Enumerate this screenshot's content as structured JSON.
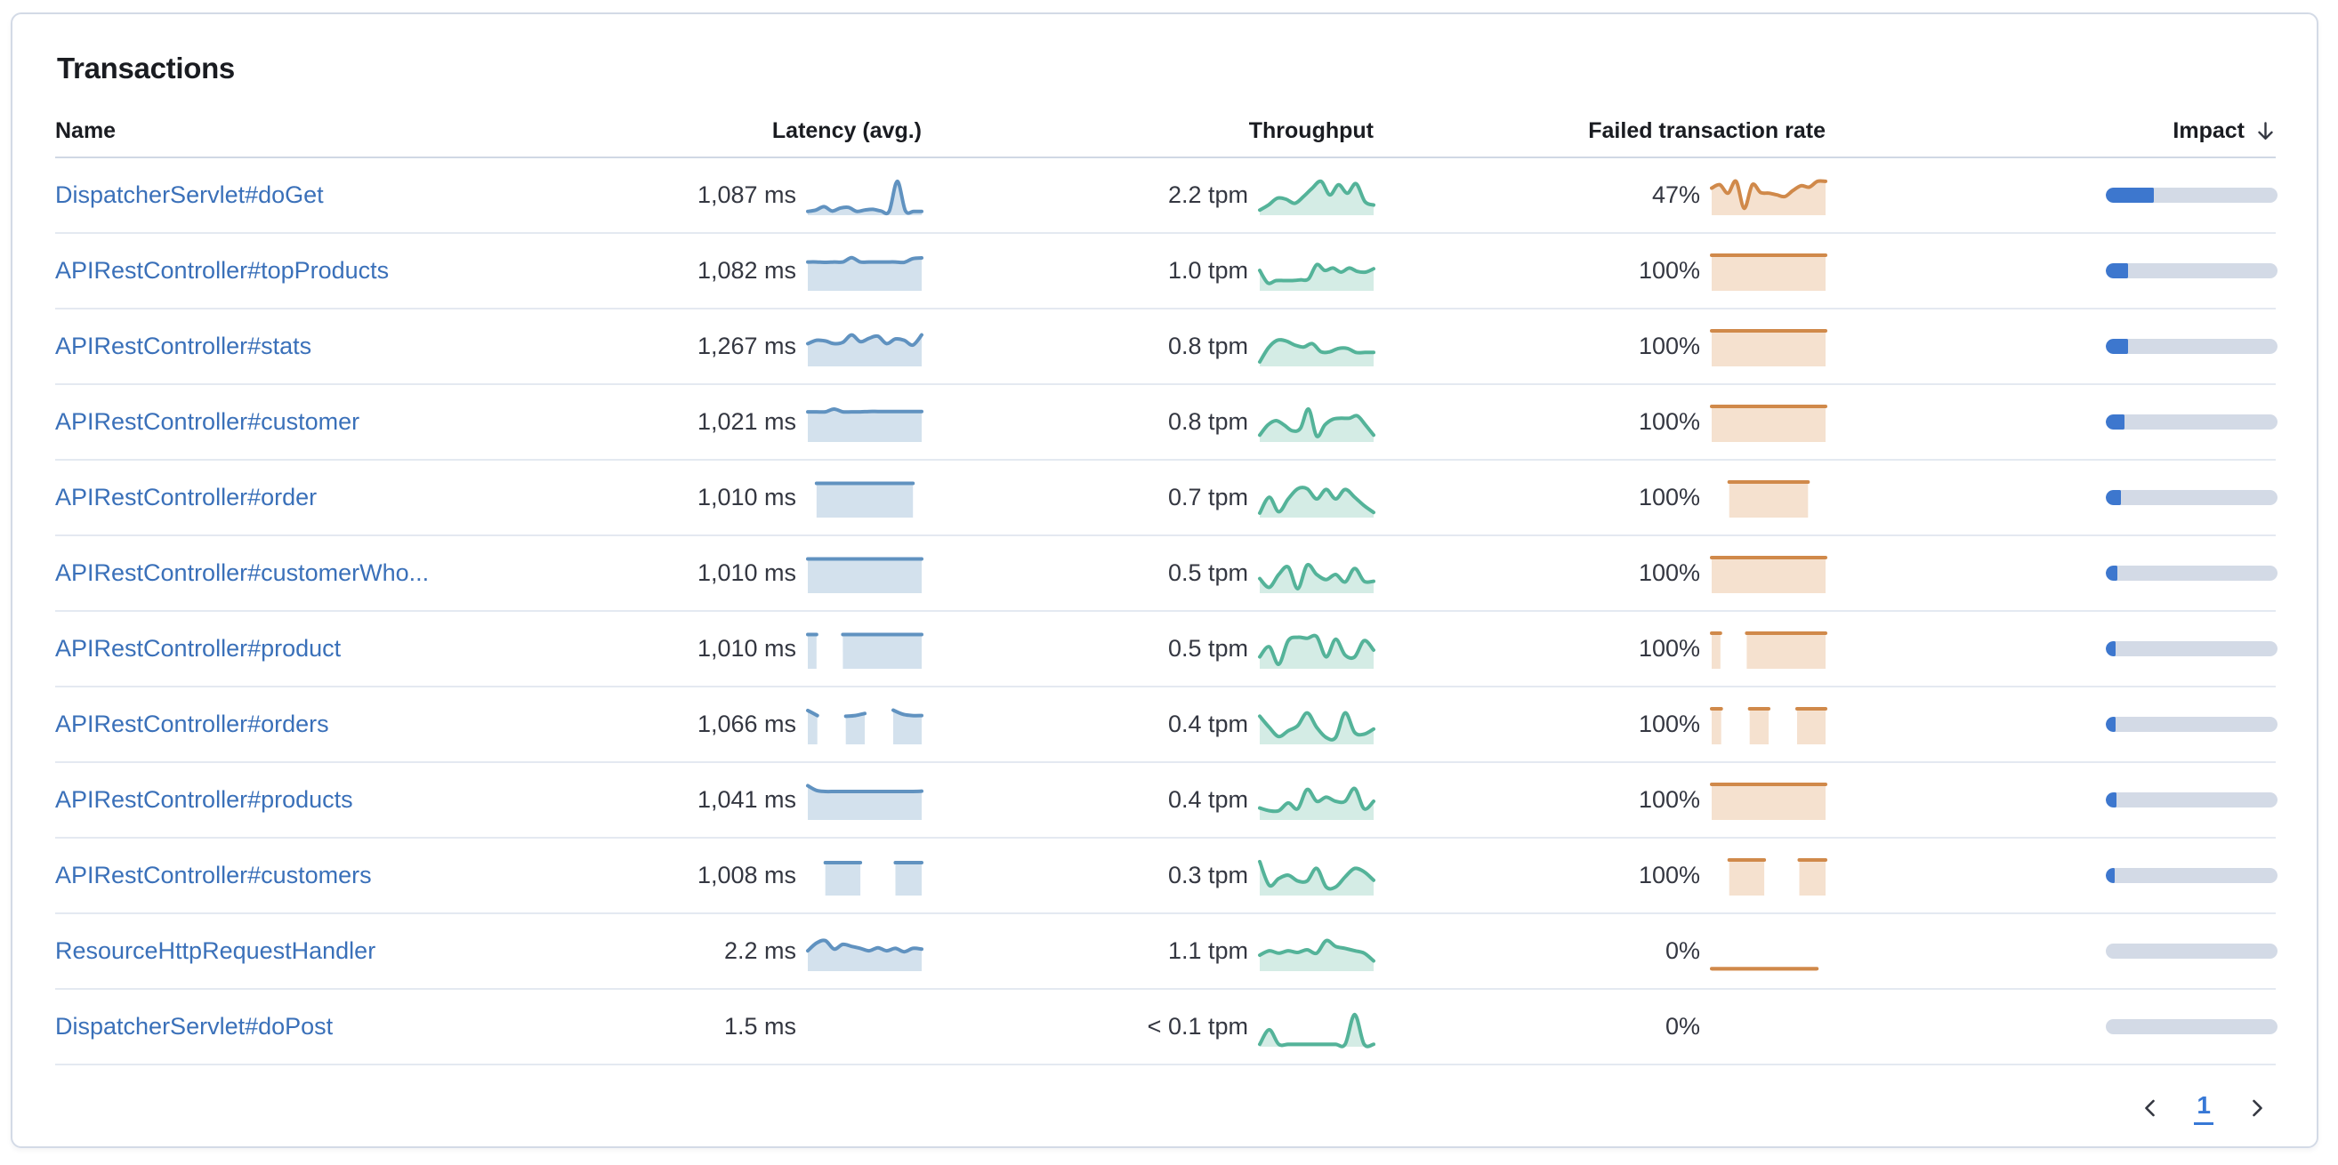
{
  "panel": {
    "title": "Transactions"
  },
  "colors": {
    "latency_line": "#6092c0",
    "latency_fill": "rgba(96,146,192,0.28)",
    "throughput_line": "#54b399",
    "throughput_fill": "rgba(84,179,153,0.25)",
    "failed_line": "#d0894a",
    "failed_fill": "rgba(218,139,69,0.26)",
    "impact_fill": "#3d77ce",
    "impact_track": "#d3dae6",
    "link": "#3a70b9",
    "value_text": "#343741",
    "header_text": "#1a1c21"
  },
  "table": {
    "columns": [
      {
        "label": "Name",
        "align": "left",
        "sortable": false
      },
      {
        "label": "Latency (avg.)",
        "align": "right",
        "sortable": true
      },
      {
        "label": "Throughput",
        "align": "right",
        "sortable": true
      },
      {
        "label": "Failed transaction rate",
        "align": "right",
        "sortable": true
      },
      {
        "label": "Impact",
        "align": "right",
        "sortable": true,
        "sort": "desc"
      }
    ],
    "rows": [
      {
        "name": "DispatcherServlet#doGet",
        "latency": "1,087 ms",
        "throughput": "2.2 tpm",
        "failed_rate": "47%",
        "impact_pct": 28,
        "latency_spark": [
          0.06,
          0.1,
          0.2,
          0.07,
          0.16,
          0.18,
          0.06,
          0.1,
          0.12,
          0.07,
          0.06,
          0.95,
          0.08,
          0.06,
          0.06
        ],
        "throughput_spark": [
          0.1,
          0.25,
          0.45,
          0.42,
          0.3,
          0.5,
          0.75,
          0.95,
          0.55,
          0.85,
          0.6,
          0.88,
          0.35,
          0.25
        ],
        "failed_rate_spark": [
          0.75,
          0.85,
          0.6,
          0.95,
          0.15,
          0.85,
          0.62,
          0.6,
          0.55,
          0.5,
          0.68,
          0.82,
          0.78,
          0.95,
          0.95
        ]
      },
      {
        "name": "APIRestController#topProducts",
        "latency": "1,082 ms",
        "throughput": "1.0 tpm",
        "failed_rate": "100%",
        "impact_pct": 13,
        "latency_spark": [
          0.8,
          0.8,
          0.79,
          0.8,
          0.8,
          0.93,
          0.8,
          0.8,
          0.8,
          0.8,
          0.8,
          0.79,
          0.9,
          0.92
        ],
        "throughput_spark": [
          0.55,
          0.18,
          0.25,
          0.25,
          0.25,
          0.27,
          0.3,
          0.72,
          0.55,
          0.62,
          0.5,
          0.62,
          0.52,
          0.5,
          0.6
        ],
        "failed_rate_spark": [
          1,
          1,
          1,
          1,
          1,
          1,
          1,
          1,
          1,
          1,
          1,
          1,
          1,
          1
        ]
      },
      {
        "name": "APIRestController#stats",
        "latency": "1,267 ms",
        "throughput": "0.8 tpm",
        "failed_rate": "100%",
        "impact_pct": 13,
        "latency_spark": [
          0.62,
          0.72,
          0.7,
          0.62,
          0.66,
          0.88,
          0.68,
          0.78,
          0.84,
          0.62,
          0.76,
          0.72,
          0.58,
          0.88
        ],
        "throughput_spark": [
          0.08,
          0.5,
          0.72,
          0.7,
          0.58,
          0.52,
          0.62,
          0.38,
          0.38,
          0.48,
          0.48,
          0.36,
          0.36,
          0.36
        ],
        "failed_rate_spark": [
          1,
          1,
          1,
          1,
          1,
          1,
          1,
          1,
          1,
          1,
          1,
          1,
          1,
          1
        ]
      },
      {
        "name": "APIRestController#customer",
        "latency": "1,021 ms",
        "throughput": "0.8 tpm",
        "failed_rate": "100%",
        "impact_pct": 11,
        "latency_spark": [
          0.84,
          0.84,
          0.84,
          0.92,
          0.84,
          0.84,
          0.84,
          0.85,
          0.85,
          0.85,
          0.85,
          0.85,
          0.85,
          0.85
        ],
        "throughput_spark": [
          0.15,
          0.45,
          0.58,
          0.45,
          0.28,
          0.35,
          0.92,
          0.12,
          0.45,
          0.62,
          0.65,
          0.65,
          0.72,
          0.45,
          0.15
        ],
        "failed_rate_spark": [
          1,
          1,
          1,
          1,
          1,
          1,
          1,
          1,
          1,
          1,
          1,
          1,
          1,
          1
        ]
      },
      {
        "name": "APIRestController#order",
        "latency": "1,010 ms",
        "throughput": "0.7 tpm",
        "failed_rate": "100%",
        "impact_pct": 9,
        "latency_spark": [
          null,
          0.96,
          0.96,
          0.96,
          0.96,
          0.96,
          0.96,
          0.96,
          0.96,
          0.96,
          0.96,
          0.96,
          0.96,
          null
        ],
        "throughput_spark": [
          0.08,
          0.55,
          0.12,
          0.5,
          0.8,
          0.8,
          0.5,
          0.78,
          0.5,
          0.78,
          0.55,
          0.3,
          0.1
        ],
        "failed_rate_spark": [
          null,
          null,
          1,
          1,
          1,
          1,
          1,
          1,
          1,
          1,
          1,
          1,
          null,
          null
        ]
      },
      {
        "name": "APIRestController#customerWho...",
        "latency": "1,010 ms",
        "throughput": "0.5 tpm",
        "failed_rate": "100%",
        "impact_pct": 6.5,
        "latency_spark": [
          0.96,
          0.96,
          0.96,
          0.96,
          0.96,
          0.96,
          0.96,
          0.96,
          0.96,
          0.96,
          0.96,
          0.96,
          0.96,
          0.96
        ],
        "throughput_spark": [
          0.38,
          0.12,
          0.5,
          0.72,
          0.08,
          0.78,
          0.5,
          0.35,
          0.5,
          0.28,
          0.68,
          0.3,
          0.3
        ],
        "failed_rate_spark": [
          1,
          1,
          1,
          1,
          1,
          1,
          1,
          1,
          1,
          1,
          1,
          1,
          1,
          1
        ]
      },
      {
        "name": "APIRestController#product",
        "latency": "1,010 ms",
        "throughput": "0.5 tpm",
        "failed_rate": "100%",
        "impact_pct": 5.5,
        "latency_spark": [
          0.96,
          0.96,
          null,
          null,
          0.96,
          0.96,
          0.96,
          0.96,
          0.96,
          0.96,
          0.96,
          0.96,
          0.96,
          0.96
        ],
        "throughput_spark": [
          0.3,
          0.6,
          0.08,
          0.78,
          0.88,
          0.85,
          0.9,
          0.3,
          0.82,
          0.35,
          0.3,
          0.78,
          0.5
        ],
        "failed_rate_spark": [
          1,
          1,
          null,
          null,
          1,
          1,
          1,
          1,
          1,
          1,
          1,
          1,
          1,
          1
        ]
      },
      {
        "name": "APIRestController#orders",
        "latency": "1,066 ms",
        "throughput": "0.4 tpm",
        "failed_rate": "100%",
        "impact_pct": 5.5,
        "latency_spark": [
          0.95,
          0.8,
          null,
          null,
          0.78,
          0.8,
          0.86,
          null,
          null,
          0.96,
          0.84,
          0.8,
          0.8
        ],
        "throughput_spark": [
          0.78,
          0.45,
          0.18,
          0.35,
          0.5,
          0.88,
          0.45,
          0.15,
          0.15,
          0.88,
          0.3,
          0.25,
          0.4
        ],
        "failed_rate_spark": [
          1,
          1,
          null,
          null,
          1,
          1,
          1,
          null,
          null,
          1,
          1,
          1,
          1
        ]
      },
      {
        "name": "APIRestController#products",
        "latency": "1,041 ms",
        "throughput": "0.4 tpm",
        "failed_rate": "100%",
        "impact_pct": 6,
        "latency_spark": [
          0.96,
          0.82,
          0.79,
          0.79,
          0.79,
          0.79,
          0.79,
          0.79,
          0.79,
          0.79,
          0.79,
          0.79,
          0.79,
          0.8
        ],
        "throughput_spark": [
          0.3,
          0.22,
          0.22,
          0.45,
          0.28,
          0.85,
          0.5,
          0.62,
          0.5,
          0.5,
          0.88,
          0.28,
          0.5
        ],
        "failed_rate_spark": [
          1,
          1,
          1,
          1,
          1,
          1,
          1,
          1,
          1,
          1,
          1,
          1,
          1,
          1
        ]
      },
      {
        "name": "APIRestController#customers",
        "latency": "1,008 ms",
        "throughput": "0.3 tpm",
        "failed_rate": "100%",
        "impact_pct": 4.5,
        "latency_spark": [
          null,
          null,
          0.92,
          0.92,
          0.92,
          0.92,
          0.92,
          null,
          null,
          null,
          0.92,
          0.92,
          0.92,
          0.92
        ],
        "throughput_spark": [
          0.95,
          0.25,
          0.45,
          0.55,
          0.38,
          0.38,
          0.75,
          0.2,
          0.2,
          0.5,
          0.75,
          0.65,
          0.4
        ],
        "failed_rate_spark": [
          null,
          null,
          1,
          1,
          1,
          1,
          1,
          null,
          null,
          null,
          1,
          1,
          1,
          1
        ]
      },
      {
        "name": "ResourceHttpRequestHandler",
        "latency": "2.2 ms",
        "throughput": "1.1 tpm",
        "failed_rate": "0%",
        "impact_pct": 0,
        "latency_spark": [
          0.55,
          0.78,
          0.85,
          0.6,
          0.74,
          0.68,
          0.62,
          0.55,
          0.64,
          0.55,
          0.62,
          0.52,
          0.62,
          0.6
        ],
        "throughput_spark": [
          0.42,
          0.55,
          0.48,
          0.55,
          0.5,
          0.58,
          0.48,
          0.85,
          0.68,
          0.62,
          0.55,
          0.48,
          0.25
        ],
        "failed_rate_spark": [
          0.02,
          0.02,
          0.02,
          0.02,
          0.02,
          0.02,
          0.02,
          0.02,
          0.02,
          0.02,
          0.02,
          0.02,
          0.02,
          null
        ]
      },
      {
        "name": "DispatcherServlet#doPost",
        "latency": "1.5 ms",
        "throughput": "< 0.1 tpm",
        "failed_rate": "0%",
        "impact_pct": 0,
        "latency_spark": [],
        "throughput_spark": [
          0.02,
          0.45,
          0.02,
          0.02,
          0.02,
          0.02,
          0.02,
          0.02,
          0.02,
          0.02,
          0.9,
          0.02,
          0.02
        ],
        "failed_rate_spark": []
      }
    ]
  },
  "pagination": {
    "current_page": "1"
  }
}
